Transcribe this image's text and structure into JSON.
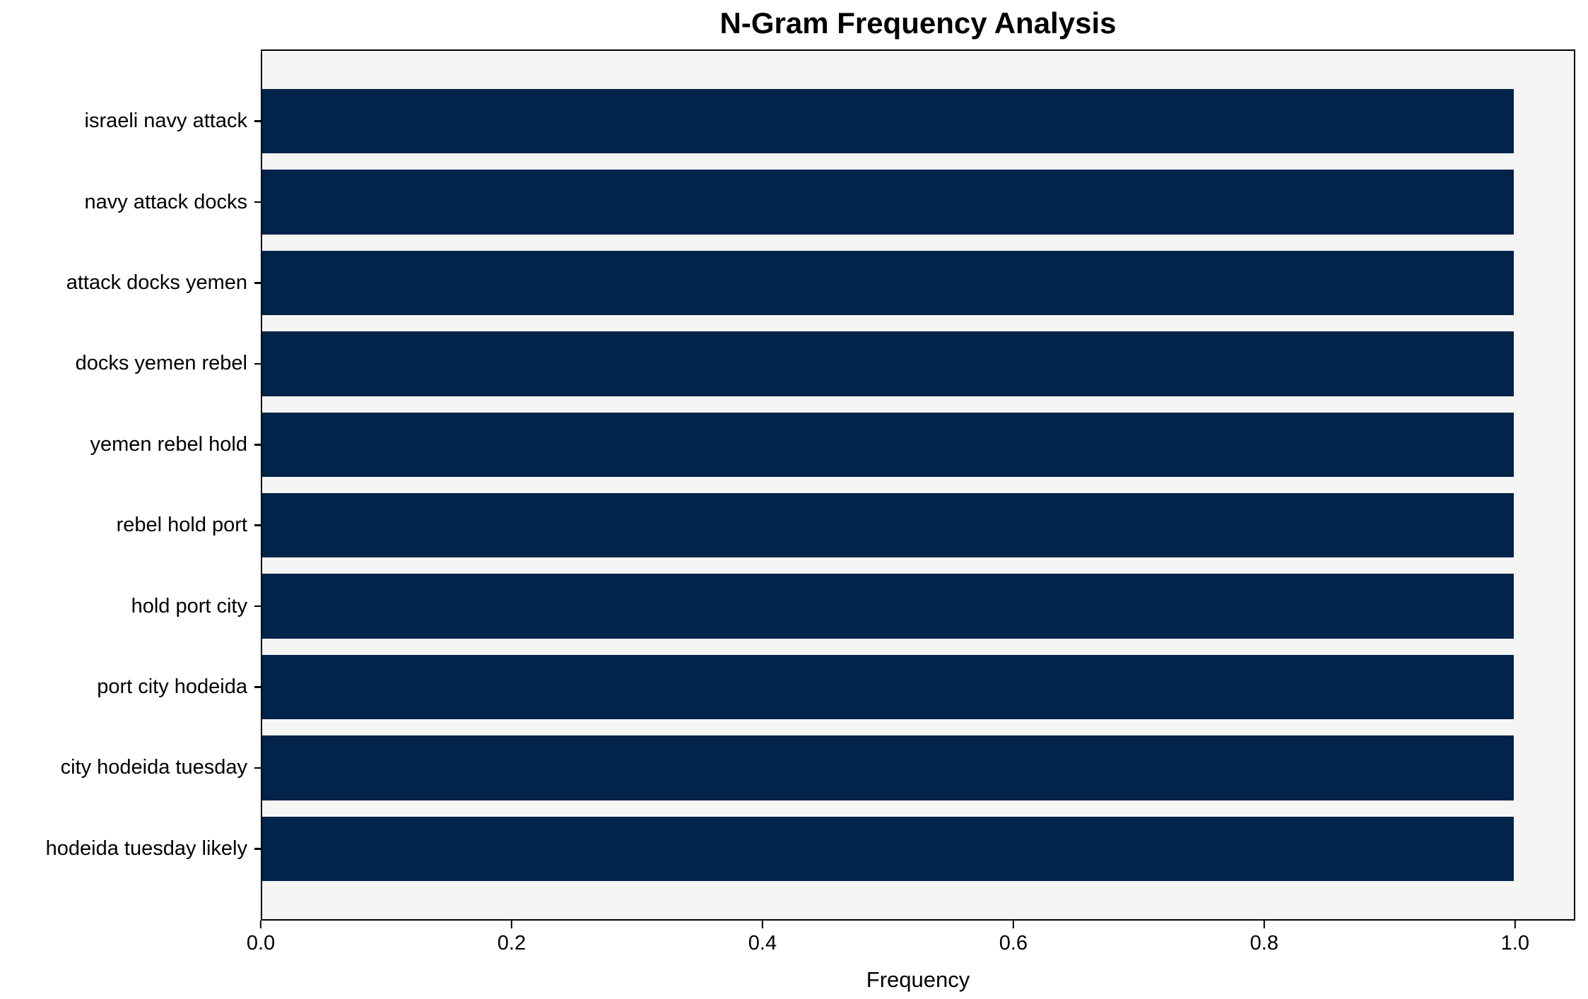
{
  "chart_data": {
    "type": "bar",
    "orientation": "horizontal",
    "title": "N-Gram Frequency Analysis",
    "xlabel": "Frequency",
    "ylabel": "",
    "categories": [
      "israeli navy attack",
      "navy attack docks",
      "attack docks yemen",
      "docks yemen rebel",
      "yemen rebel hold",
      "rebel hold port",
      "hold port city",
      "port city hodeida",
      "city hodeida tuesday",
      "hodeida tuesday likely"
    ],
    "values": [
      1.0,
      1.0,
      1.0,
      1.0,
      1.0,
      1.0,
      1.0,
      1.0,
      1.0,
      1.0
    ],
    "xticks": [
      0.0,
      0.2,
      0.4,
      0.6,
      0.8,
      1.0
    ],
    "xtick_labels": [
      "0.0",
      "0.2",
      "0.4",
      "0.6",
      "0.8",
      "1.0"
    ],
    "xlim": [
      0,
      1.048
    ],
    "grid": false,
    "legend": null,
    "colors": {
      "bar": "#02234a",
      "plot_background": "#f5f5f4",
      "figure_background": "#ffffff",
      "spine": "#000000",
      "text": "#000000"
    }
  }
}
